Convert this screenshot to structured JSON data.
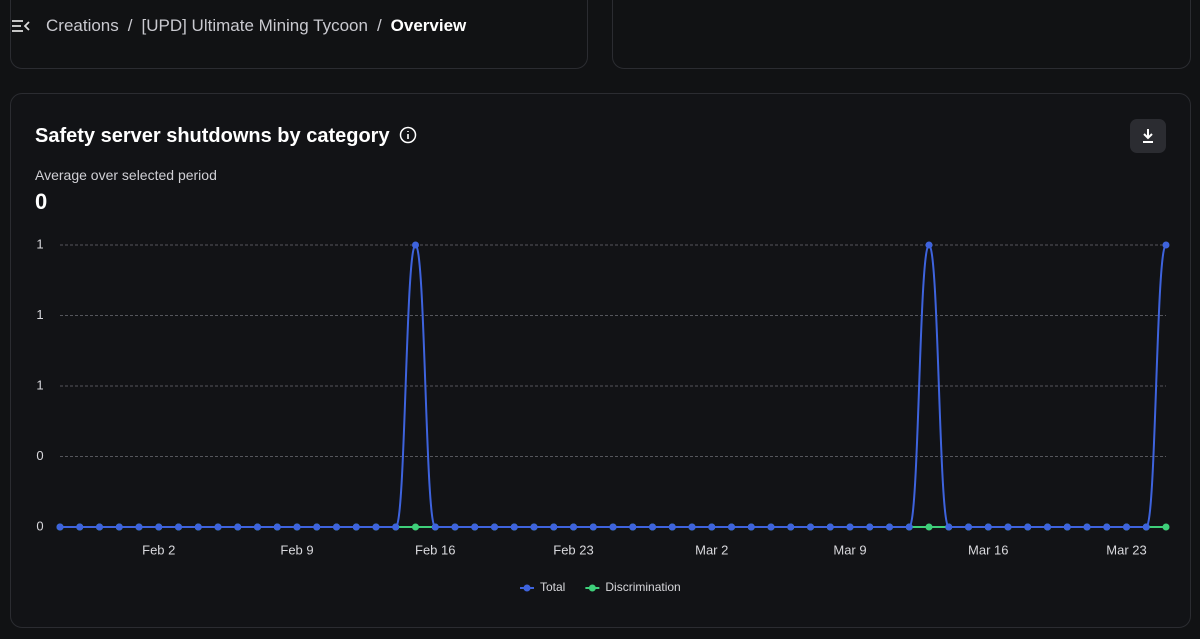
{
  "header": {
    "breadcrumb": [
      "Creations",
      "[UPD] Ultimate Mining Tycoon",
      "Overview"
    ],
    "separator": "/"
  },
  "card": {
    "title": "Safety server shutdowns by category",
    "metric_label": "Average over selected period",
    "metric_value": 0
  },
  "chart_data": {
    "type": "line",
    "categories": [
      null,
      null,
      null,
      null,
      null,
      "Feb 2",
      null,
      null,
      null,
      null,
      null,
      null,
      "Feb 9",
      null,
      null,
      null,
      null,
      null,
      null,
      "Feb 16",
      null,
      null,
      null,
      null,
      null,
      null,
      "Feb 23",
      null,
      null,
      null,
      null,
      null,
      null,
      "Mar 2",
      null,
      null,
      null,
      null,
      null,
      null,
      "Mar 9",
      null,
      null,
      null,
      null,
      null,
      null,
      "Mar 16",
      null,
      null,
      null,
      null,
      null,
      null,
      "Mar 23",
      null,
      null
    ],
    "series": [
      {
        "name": "Total",
        "color": "#3e63dd",
        "values": [
          0,
          0,
          0,
          0,
          0,
          0,
          0,
          0,
          0,
          0,
          0,
          0,
          0,
          0,
          0,
          0,
          0,
          0,
          1,
          0,
          0,
          0,
          0,
          0,
          0,
          0,
          0,
          0,
          0,
          0,
          0,
          0,
          0,
          0,
          0,
          0,
          0,
          0,
          0,
          0,
          0,
          0,
          0,
          0,
          1,
          0,
          0,
          0,
          0,
          0,
          0,
          0,
          0,
          0,
          0,
          0,
          1
        ]
      },
      {
        "name": "Discrimination",
        "color": "#3ecf7a",
        "values": [
          0,
          0,
          0,
          0,
          0,
          0,
          0,
          0,
          0,
          0,
          0,
          0,
          0,
          0,
          0,
          0,
          0,
          0,
          0,
          0,
          0,
          0,
          0,
          0,
          0,
          0,
          0,
          0,
          0,
          0,
          0,
          0,
          0,
          0,
          0,
          0,
          0,
          0,
          0,
          0,
          0,
          0,
          0,
          0,
          0,
          0,
          0,
          0,
          0,
          0,
          0,
          0,
          0,
          0,
          0,
          0,
          0
        ]
      }
    ],
    "ylim": [
      0,
      1
    ],
    "yticks": [
      0,
      {
        "value": 0.25,
        "label": "0"
      },
      {
        "value": 0.5,
        "label": "1"
      },
      {
        "value": 0.75,
        "label": "1"
      },
      1
    ],
    "grid": true
  }
}
